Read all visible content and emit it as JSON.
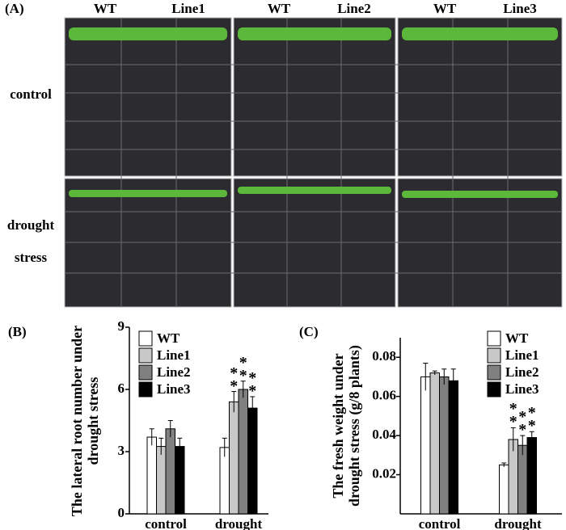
{
  "panel_a": {
    "panel_label": "(A)",
    "column_labels": [
      "WT",
      "Line1",
      "WT",
      "Line2",
      "WT",
      "Line3"
    ],
    "row_labels": [
      "control",
      "drought",
      "stress"
    ]
  },
  "chart_data": [
    {
      "type": "bar",
      "panel_label": "(B)",
      "ylabel": "The lateral root number under drought stress",
      "categories": [
        "control",
        "drought stress"
      ],
      "series": [
        {
          "name": "WT",
          "color": "#ffffff",
          "values": [
            3.7,
            3.2
          ],
          "errors": [
            0.4,
            0.45
          ],
          "significance": [
            null,
            null
          ]
        },
        {
          "name": "Line1",
          "color": "#c8c8c8",
          "values": [
            3.25,
            5.4
          ],
          "errors": [
            0.4,
            0.5
          ],
          "significance": [
            null,
            "**"
          ]
        },
        {
          "name": "Line2",
          "color": "#808080",
          "values": [
            4.1,
            6.0
          ],
          "errors": [
            0.4,
            0.4
          ],
          "significance": [
            null,
            "**"
          ]
        },
        {
          "name": "Line3",
          "color": "#000000",
          "values": [
            3.25,
            5.1
          ],
          "errors": [
            0.4,
            0.55
          ],
          "significance": [
            null,
            "**"
          ]
        }
      ],
      "ylim": [
        0,
        9
      ],
      "yticks": [
        0,
        3,
        6,
        9
      ]
    },
    {
      "type": "bar",
      "panel_label": "(C)",
      "ylabel": "The fresh weight under drought stress (g/8 plants)",
      "categories": [
        "control",
        "drought stress"
      ],
      "series": [
        {
          "name": "WT",
          "color": "#ffffff",
          "values": [
            0.07,
            0.025
          ],
          "errors": [
            0.007,
            0.001
          ],
          "significance": [
            null,
            null
          ]
        },
        {
          "name": "Line1",
          "color": "#c8c8c8",
          "values": [
            0.072,
            0.038
          ],
          "errors": [
            0.001,
            0.006
          ],
          "significance": [
            null,
            "**"
          ]
        },
        {
          "name": "Line2",
          "color": "#808080",
          "values": [
            0.07,
            0.035
          ],
          "errors": [
            0.004,
            0.005
          ],
          "significance": [
            null,
            "**"
          ]
        },
        {
          "name": "Line3",
          "color": "#000000",
          "values": [
            0.068,
            0.039
          ],
          "errors": [
            0.006,
            0.003
          ],
          "significance": [
            null,
            "**"
          ]
        }
      ],
      "ylim": [
        0,
        0.09
      ],
      "yticks": [
        0.02,
        0.04,
        0.06,
        0.08
      ]
    }
  ]
}
